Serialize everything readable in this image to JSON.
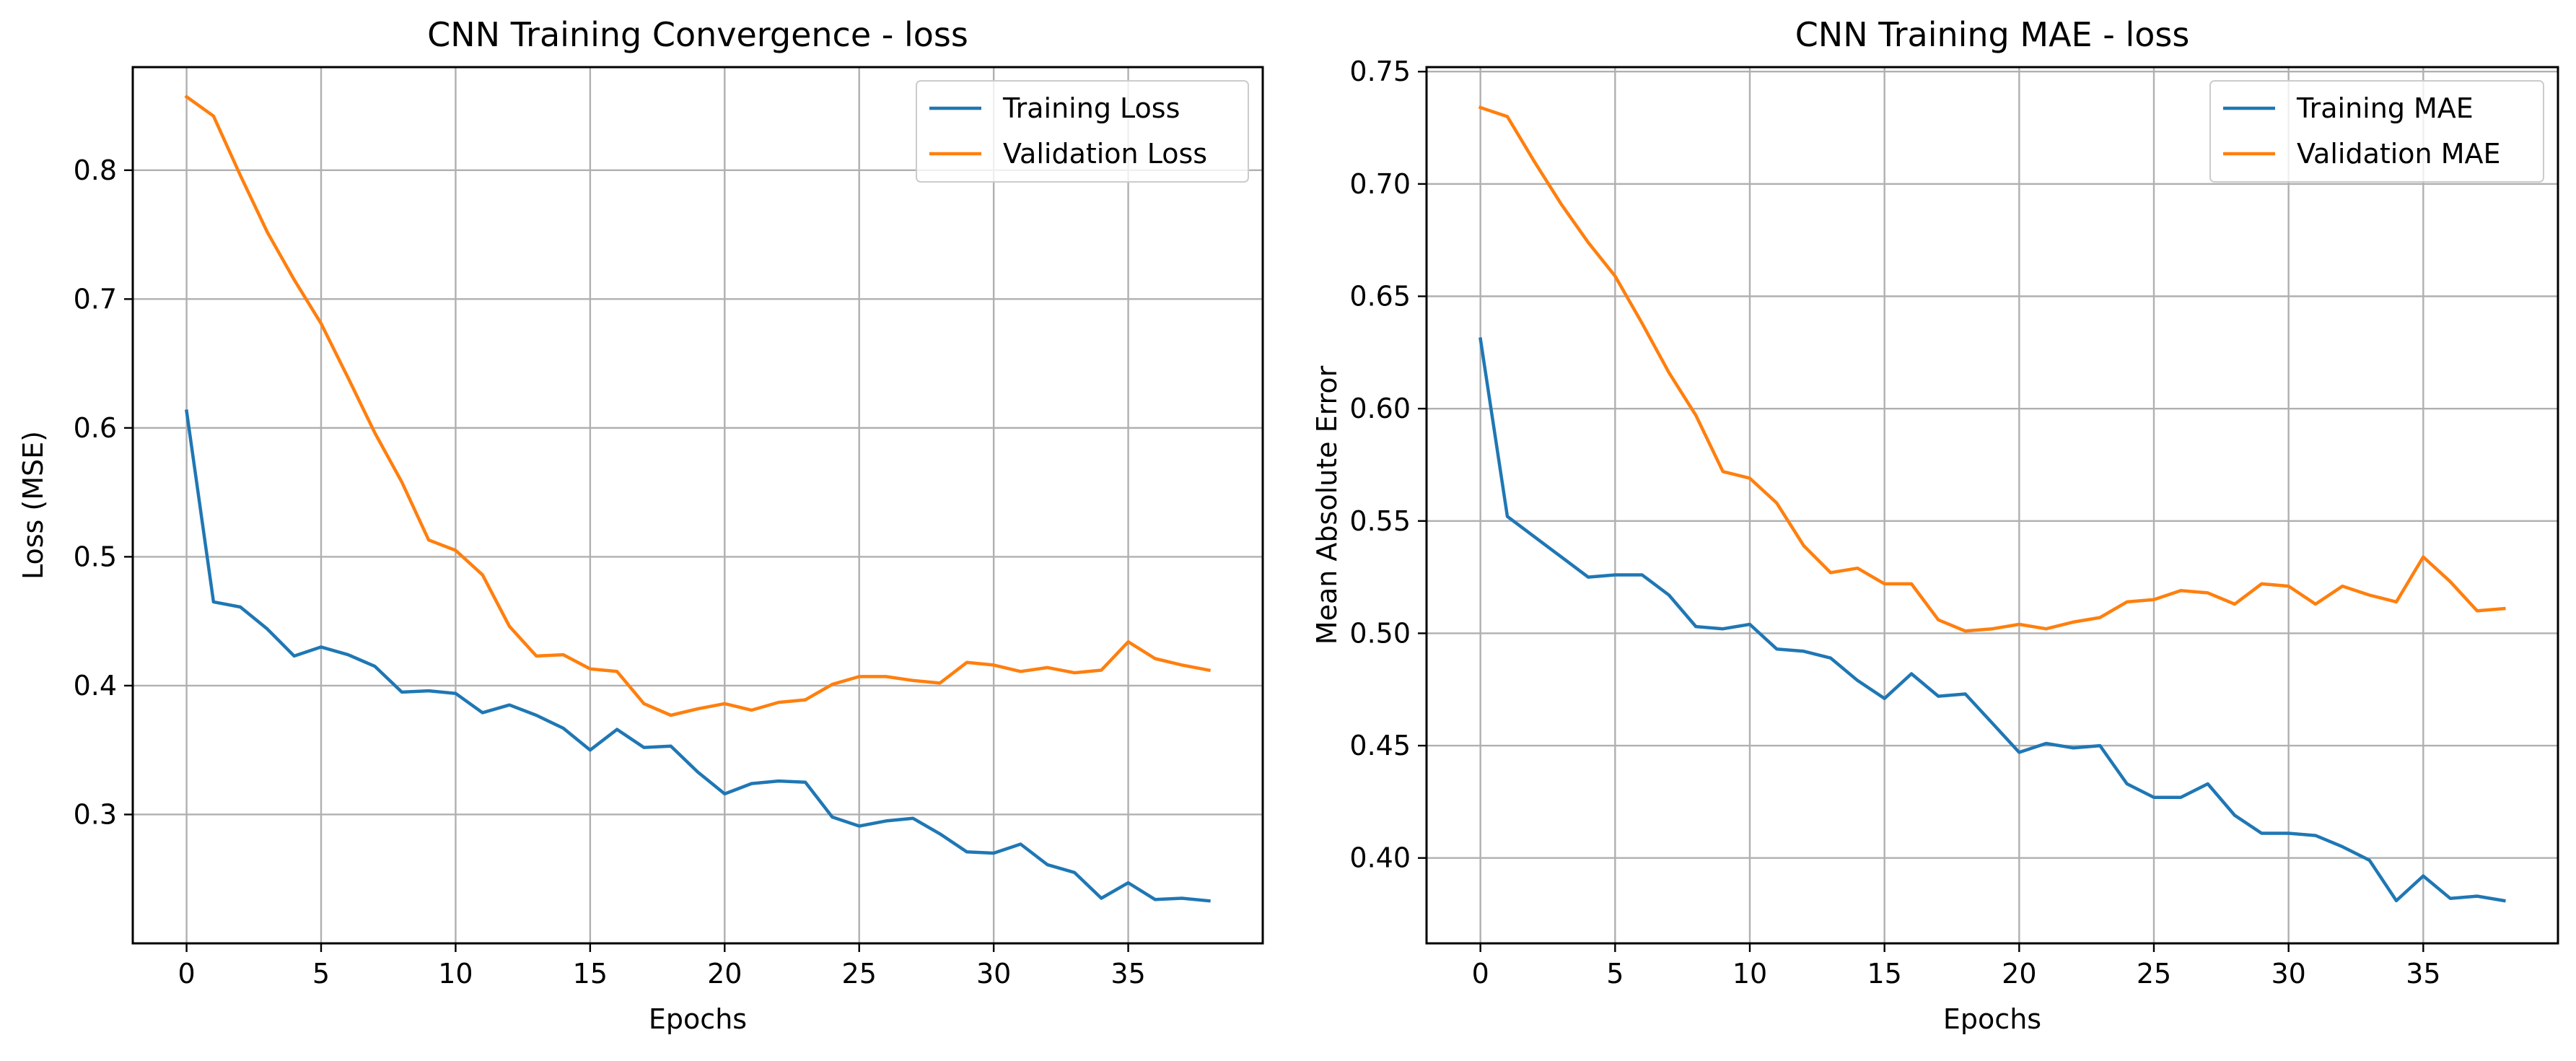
{
  "chart_data": [
    {
      "type": "line",
      "title": "CNN Training Convergence - loss",
      "xlabel": "Epochs",
      "ylabel": "Loss (MSE)",
      "xlim": [
        -2,
        40
      ],
      "ylim": [
        0.2,
        0.88
      ],
      "xticks": [
        0,
        5,
        10,
        15,
        20,
        25,
        30,
        35
      ],
      "yticks": [
        0.3,
        0.4,
        0.5,
        0.6,
        0.7,
        0.8
      ],
      "ytick_labels": [
        "0.3",
        "0.4",
        "0.5",
        "0.6",
        "0.7",
        "0.8"
      ],
      "grid": true,
      "legend_position": "top-right",
      "x": [
        0,
        1,
        2,
        3,
        4,
        5,
        6,
        7,
        8,
        9,
        10,
        11,
        12,
        13,
        14,
        15,
        16,
        17,
        18,
        19,
        20,
        21,
        22,
        23,
        24,
        25,
        26,
        27,
        28,
        29,
        30,
        31,
        32,
        33,
        34,
        35,
        36,
        37,
        38
      ],
      "series": [
        {
          "name": "Training Loss",
          "color": "#1f77b4",
          "values": [
            0.613,
            0.465,
            0.461,
            0.444,
            0.423,
            0.43,
            0.424,
            0.415,
            0.395,
            0.396,
            0.394,
            0.379,
            0.385,
            0.377,
            0.367,
            0.35,
            0.366,
            0.352,
            0.353,
            0.333,
            0.316,
            0.324,
            0.326,
            0.325,
            0.298,
            0.291,
            0.295,
            0.297,
            0.285,
            0.271,
            0.27,
            0.277,
            0.261,
            0.255,
            0.235,
            0.247,
            0.234,
            0.235,
            0.233
          ]
        },
        {
          "name": "Validation Loss",
          "color": "#ff7f0e",
          "values": [
            0.857,
            0.842,
            0.796,
            0.752,
            0.715,
            0.681,
            0.639,
            0.596,
            0.558,
            0.513,
            0.505,
            0.486,
            0.446,
            0.423,
            0.424,
            0.413,
            0.411,
            0.386,
            0.377,
            0.382,
            0.386,
            0.381,
            0.387,
            0.389,
            0.401,
            0.407,
            0.407,
            0.404,
            0.402,
            0.418,
            0.416,
            0.411,
            0.414,
            0.41,
            0.412,
            0.434,
            0.421,
            0.416,
            0.412
          ]
        }
      ]
    },
    {
      "type": "line",
      "title": "CNN Training MAE - loss",
      "xlabel": "Epochs",
      "ylabel": "Mean Absolute Error",
      "xlim": [
        -2,
        40
      ],
      "ylim": [
        0.362,
        0.752
      ],
      "xticks": [
        0,
        5,
        10,
        15,
        20,
        25,
        30,
        35
      ],
      "yticks": [
        0.4,
        0.45,
        0.5,
        0.55,
        0.6,
        0.65,
        0.7,
        0.75
      ],
      "ytick_labels": [
        "0.40",
        "0.45",
        "0.50",
        "0.55",
        "0.60",
        "0.65",
        "0.70",
        "0.75"
      ],
      "grid": true,
      "legend_position": "top-right",
      "x": [
        0,
        1,
        2,
        3,
        4,
        5,
        6,
        7,
        8,
        9,
        10,
        11,
        12,
        13,
        14,
        15,
        16,
        17,
        18,
        19,
        20,
        21,
        22,
        23,
        24,
        25,
        26,
        27,
        28,
        29,
        30,
        31,
        32,
        33,
        34,
        35,
        36,
        37,
        38
      ],
      "series": [
        {
          "name": "Training MAE",
          "color": "#1f77b4",
          "values": [
            0.631,
            0.552,
            0.543,
            0.534,
            0.525,
            0.526,
            0.526,
            0.517,
            0.503,
            0.502,
            0.504,
            0.493,
            0.492,
            0.489,
            0.479,
            0.471,
            0.482,
            0.472,
            0.473,
            0.46,
            0.447,
            0.451,
            0.449,
            0.45,
            0.433,
            0.427,
            0.427,
            0.433,
            0.419,
            0.411,
            0.411,
            0.41,
            0.405,
            0.399,
            0.381,
            0.392,
            0.382,
            0.383,
            0.381
          ]
        },
        {
          "name": "Validation MAE",
          "color": "#ff7f0e",
          "values": [
            0.734,
            0.73,
            0.71,
            0.691,
            0.674,
            0.659,
            0.638,
            0.616,
            0.597,
            0.572,
            0.569,
            0.558,
            0.539,
            0.527,
            0.529,
            0.522,
            0.522,
            0.506,
            0.501,
            0.502,
            0.504,
            0.502,
            0.505,
            0.507,
            0.514,
            0.515,
            0.519,
            0.518,
            0.513,
            0.522,
            0.521,
            0.513,
            0.521,
            0.517,
            0.514,
            0.534,
            0.523,
            0.51,
            0.511
          ]
        }
      ]
    }
  ]
}
